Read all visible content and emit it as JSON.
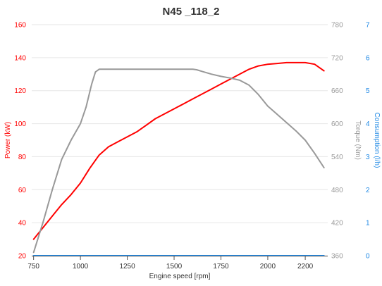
{
  "chart_data": {
    "type": "line",
    "title": "N45 _118_2",
    "xlabel": "Engine speed [rpm]",
    "xlim": [
      740,
      2320
    ],
    "x_ticks": [
      750,
      1000,
      1250,
      1500,
      1750,
      2000,
      2200
    ],
    "axes": {
      "power": {
        "label": "Power (kW)",
        "range": [
          20,
          160
        ],
        "ticks": [
          20,
          40,
          60,
          80,
          100,
          120,
          140,
          160
        ],
        "color": "#ff0000"
      },
      "torque": {
        "label": "Torque (Nm)",
        "range": [
          360,
          780
        ],
        "ticks": [
          360,
          420,
          480,
          540,
          600,
          660,
          720,
          780
        ],
        "color": "#999999"
      },
      "consumption": {
        "label": "Consumption (l/h)",
        "range": [
          0,
          7
        ],
        "ticks": [
          0,
          1,
          2,
          3,
          4,
          5,
          6,
          7
        ],
        "color": "#1e88e5"
      }
    },
    "grid": true,
    "legend": "none",
    "series": [
      {
        "axis": "power",
        "color": "#ff0000",
        "x": [
          750,
          800,
          850,
          900,
          950,
          1000,
          1050,
          1100,
          1150,
          1200,
          1250,
          1300,
          1350,
          1400,
          1450,
          1500,
          1550,
          1600,
          1650,
          1700,
          1750,
          1800,
          1850,
          1900,
          1950,
          2000,
          2050,
          2100,
          2150,
          2200,
          2250,
          2300
        ],
        "values": [
          30,
          37,
          44,
          51,
          57,
          64,
          73,
          81,
          86,
          89,
          92,
          95,
          99,
          103,
          106,
          109,
          112,
          115,
          118,
          121,
          124,
          127,
          130,
          133,
          135,
          136,
          136.5,
          137,
          137,
          137,
          136,
          132
        ]
      },
      {
        "axis": "torque",
        "color": "#999999",
        "x": [
          750,
          800,
          850,
          900,
          950,
          1000,
          1030,
          1060,
          1080,
          1100,
          1200,
          1300,
          1400,
          1500,
          1600,
          1620,
          1650,
          1700,
          1750,
          1800,
          1850,
          1900,
          1950,
          2000,
          2050,
          2100,
          2150,
          2200,
          2250,
          2300
        ],
        "values": [
          366,
          420,
          480,
          535,
          570,
          600,
          630,
          672,
          694,
          699,
          699,
          699,
          699,
          699,
          699,
          698,
          695,
          690,
          686,
          683,
          679,
          670,
          653,
          632,
          617,
          602,
          587,
          570,
          546,
          520
        ]
      },
      {
        "axis": "consumption",
        "color": "#1e88e5",
        "x": [
          750,
          2300
        ],
        "values": [
          0,
          0
        ]
      }
    ]
  }
}
